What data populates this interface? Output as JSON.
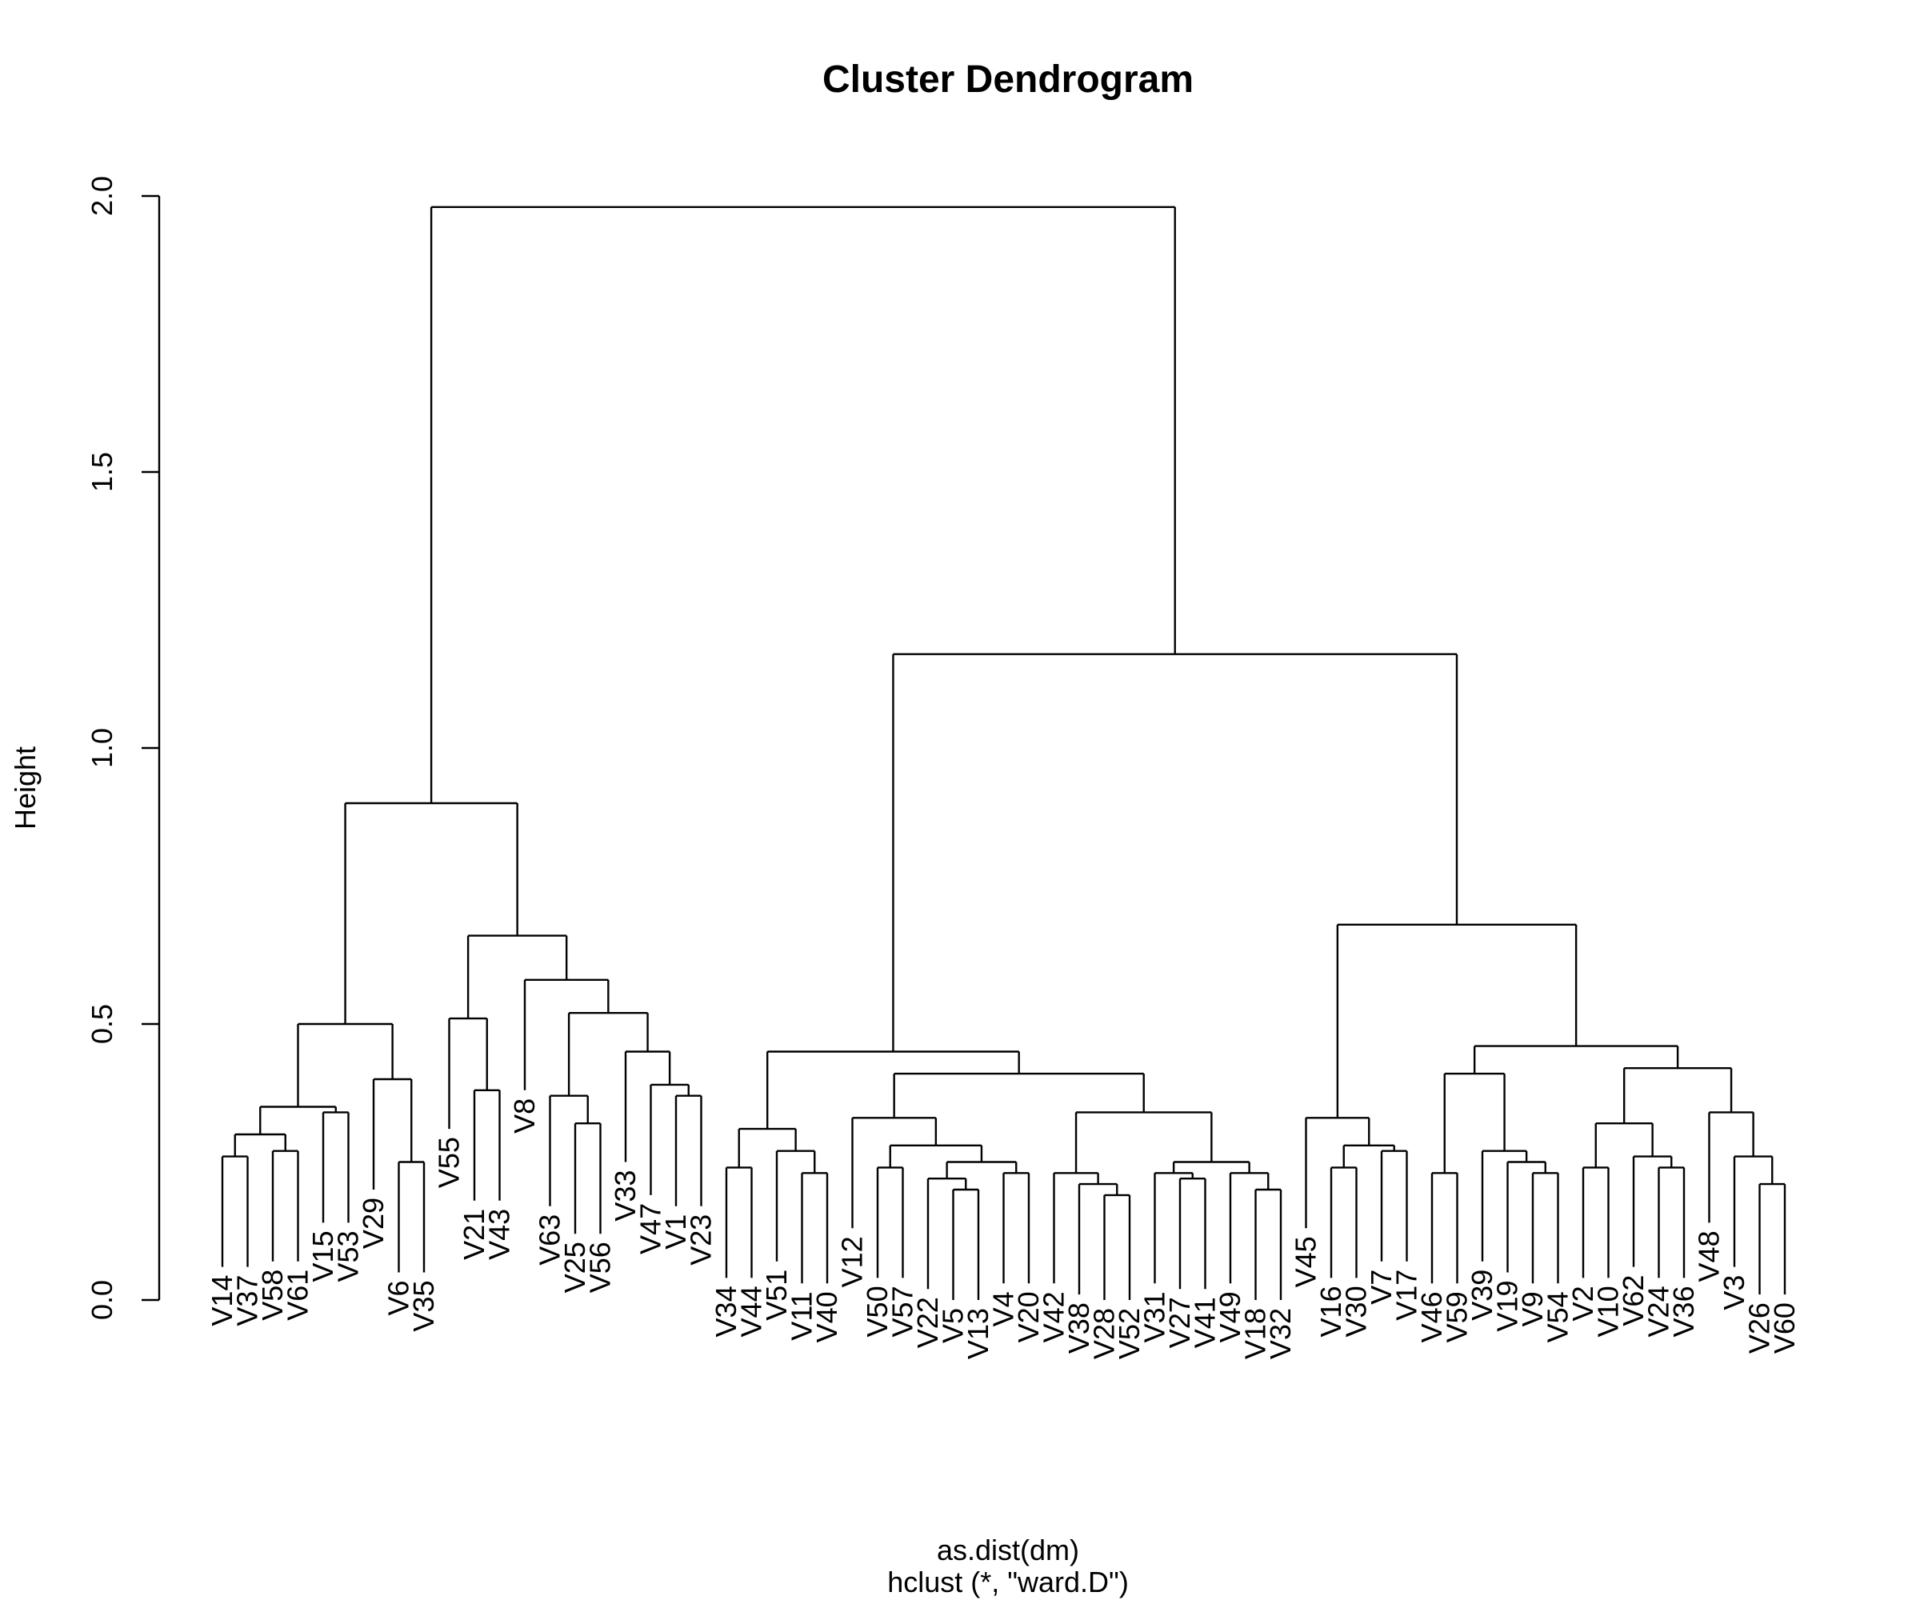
{
  "chart_data": {
    "type": "dendrogram",
    "title": "Cluster Dendrogram",
    "xlabel": "as.dist(dm)",
    "sub": "hclust (*, \"ward.D\")",
    "ylabel": "Height",
    "ylim": [
      0,
      2
    ],
    "yticks": [
      "0.0",
      "0.5",
      "1.0",
      "1.5",
      "2.0"
    ],
    "leaves": [
      "V14",
      "V37",
      "V58",
      "V61",
      "V15",
      "V53",
      "V29",
      "V6",
      "V35",
      "V55",
      "V21",
      "V43",
      "V8",
      "V63",
      "V25",
      "V56",
      "V33",
      "V47",
      "V1",
      "V23",
      "V34",
      "V44",
      "V51",
      "V11",
      "V40",
      "V12",
      "V50",
      "V57",
      "V22",
      "V5",
      "V13",
      "V4",
      "V20",
      "V42",
      "V38",
      "V28",
      "V52",
      "V31",
      "V27",
      "V41",
      "V49",
      "V18",
      "V32",
      "V45",
      "V16",
      "V30",
      "V7",
      "V17",
      "V46",
      "V59",
      "V39",
      "V19",
      "V9",
      "V54",
      "V2",
      "V10",
      "V62",
      "V24",
      "V36",
      "V48",
      "V3",
      "V26",
      "V60"
    ],
    "tree": {
      "h": 1.98,
      "c": [
        {
          "h": 0.9,
          "c": [
            {
              "h": 0.5,
              "c": [
                {
                  "h": 0.35,
                  "c": [
                    {
                      "h": 0.3,
                      "c": [
                        {
                          "h": 0.26,
                          "c": [
                            "V14",
                            "V37"
                          ]
                        },
                        {
                          "h": 0.27,
                          "c": [
                            "V58",
                            "V61"
                          ]
                        }
                      ]
                    },
                    {
                      "h": 0.34,
                      "c": [
                        "V15",
                        "V53"
                      ]
                    }
                  ]
                },
                {
                  "h": 0.4,
                  "c": [
                    "V29",
                    {
                      "h": 0.25,
                      "c": [
                        "V6",
                        "V35"
                      ]
                    }
                  ]
                }
              ]
            },
            {
              "h": 0.66,
              "c": [
                {
                  "h": 0.51,
                  "c": [
                    "V55",
                    {
                      "h": 0.38,
                      "c": [
                        "V21",
                        "V43"
                      ]
                    }
                  ]
                },
                {
                  "h": 0.58,
                  "c": [
                    "V8",
                    {
                      "h": 0.52,
                      "c": [
                        {
                          "h": 0.37,
                          "c": [
                            "V63",
                            {
                              "h": 0.32,
                              "c": [
                                "V25",
                                "V56"
                              ]
                            }
                          ]
                        },
                        {
                          "h": 0.45,
                          "c": [
                            "V33",
                            {
                              "h": 0.39,
                              "c": [
                                "V47",
                                {
                                  "h": 0.37,
                                  "c": [
                                    "V1",
                                    "V23"
                                  ]
                                }
                              ]
                            }
                          ]
                        }
                      ]
                    }
                  ]
                }
              ]
            }
          ]
        },
        {
          "h": 1.17,
          "c": [
            {
              "h": 0.45,
              "c": [
                {
                  "h": 0.31,
                  "c": [
                    {
                      "h": 0.24,
                      "c": [
                        "V34",
                        "V44"
                      ]
                    },
                    {
                      "h": 0.27,
                      "c": [
                        "V51",
                        {
                          "h": 0.23,
                          "c": [
                            "V11",
                            "V40"
                          ]
                        }
                      ]
                    }
                  ]
                },
                {
                  "h": 0.41,
                  "c": [
                    {
                      "h": 0.33,
                      "c": [
                        "V12",
                        {
                          "h": 0.28,
                          "c": [
                            {
                              "h": 0.24,
                              "c": [
                                "V50",
                                "V57"
                              ]
                            },
                            {
                              "h": 0.25,
                              "c": [
                                {
                                  "h": 0.22,
                                  "c": [
                                    "V22",
                                    {
                                      "h": 0.2,
                                      "c": [
                                        "V5",
                                        "V13"
                                      ]
                                    }
                                  ]
                                },
                                {
                                  "h": 0.23,
                                  "c": [
                                    "V4",
                                    "V20"
                                  ]
                                }
                              ]
                            }
                          ]
                        }
                      ]
                    },
                    {
                      "h": 0.34,
                      "c": [
                        {
                          "h": 0.23,
                          "c": [
                            "V42",
                            {
                              "h": 0.21,
                              "c": [
                                "V38",
                                {
                                  "h": 0.19,
                                  "c": [
                                    "V28",
                                    "V52"
                                  ]
                                }
                              ]
                            }
                          ]
                        },
                        {
                          "h": 0.25,
                          "c": [
                            {
                              "h": 0.23,
                              "c": [
                                "V31",
                                {
                                  "h": 0.22,
                                  "c": [
                                    "V27",
                                    "V41"
                                  ]
                                }
                              ]
                            },
                            {
                              "h": 0.23,
                              "c": [
                                "V49",
                                {
                                  "h": 0.2,
                                  "c": [
                                    "V18",
                                    "V32"
                                  ]
                                }
                              ]
                            }
                          ]
                        }
                      ]
                    }
                  ]
                }
              ]
            },
            {
              "h": 0.68,
              "c": [
                {
                  "h": 0.33,
                  "c": [
                    "V45",
                    {
                      "h": 0.28,
                      "c": [
                        {
                          "h": 0.24,
                          "c": [
                            "V16",
                            "V30"
                          ]
                        },
                        {
                          "h": 0.27,
                          "c": [
                            "V7",
                            "V17"
                          ]
                        }
                      ]
                    }
                  ]
                },
                {
                  "h": 0.46,
                  "c": [
                    {
                      "h": 0.41,
                      "c": [
                        {
                          "h": 0.23,
                          "c": [
                            "V46",
                            "V59"
                          ]
                        },
                        {
                          "h": 0.27,
                          "c": [
                            "V39",
                            {
                              "h": 0.25,
                              "c": [
                                "V19",
                                {
                                  "h": 0.23,
                                  "c": [
                                    "V9",
                                    "V54"
                                  ]
                                }
                              ]
                            }
                          ]
                        }
                      ]
                    },
                    {
                      "h": 0.42,
                      "c": [
                        {
                          "h": 0.32,
                          "c": [
                            {
                              "h": 0.24,
                              "c": [
                                "V2",
                                "V10"
                              ]
                            },
                            {
                              "h": 0.26,
                              "c": [
                                "V62",
                                {
                                  "h": 0.24,
                                  "c": [
                                    "V24",
                                    "V36"
                                  ]
                                }
                              ]
                            }
                          ]
                        },
                        {
                          "h": 0.34,
                          "c": [
                            "V48",
                            {
                              "h": 0.26,
                              "c": [
                                "V3",
                                {
                                  "h": 0.21,
                                  "c": [
                                    "V26",
                                    "V60"
                                  ]
                                }
                              ]
                            }
                          ]
                        }
                      ]
                    }
                  ]
                }
              ]
            }
          ]
        }
      ]
    }
  }
}
